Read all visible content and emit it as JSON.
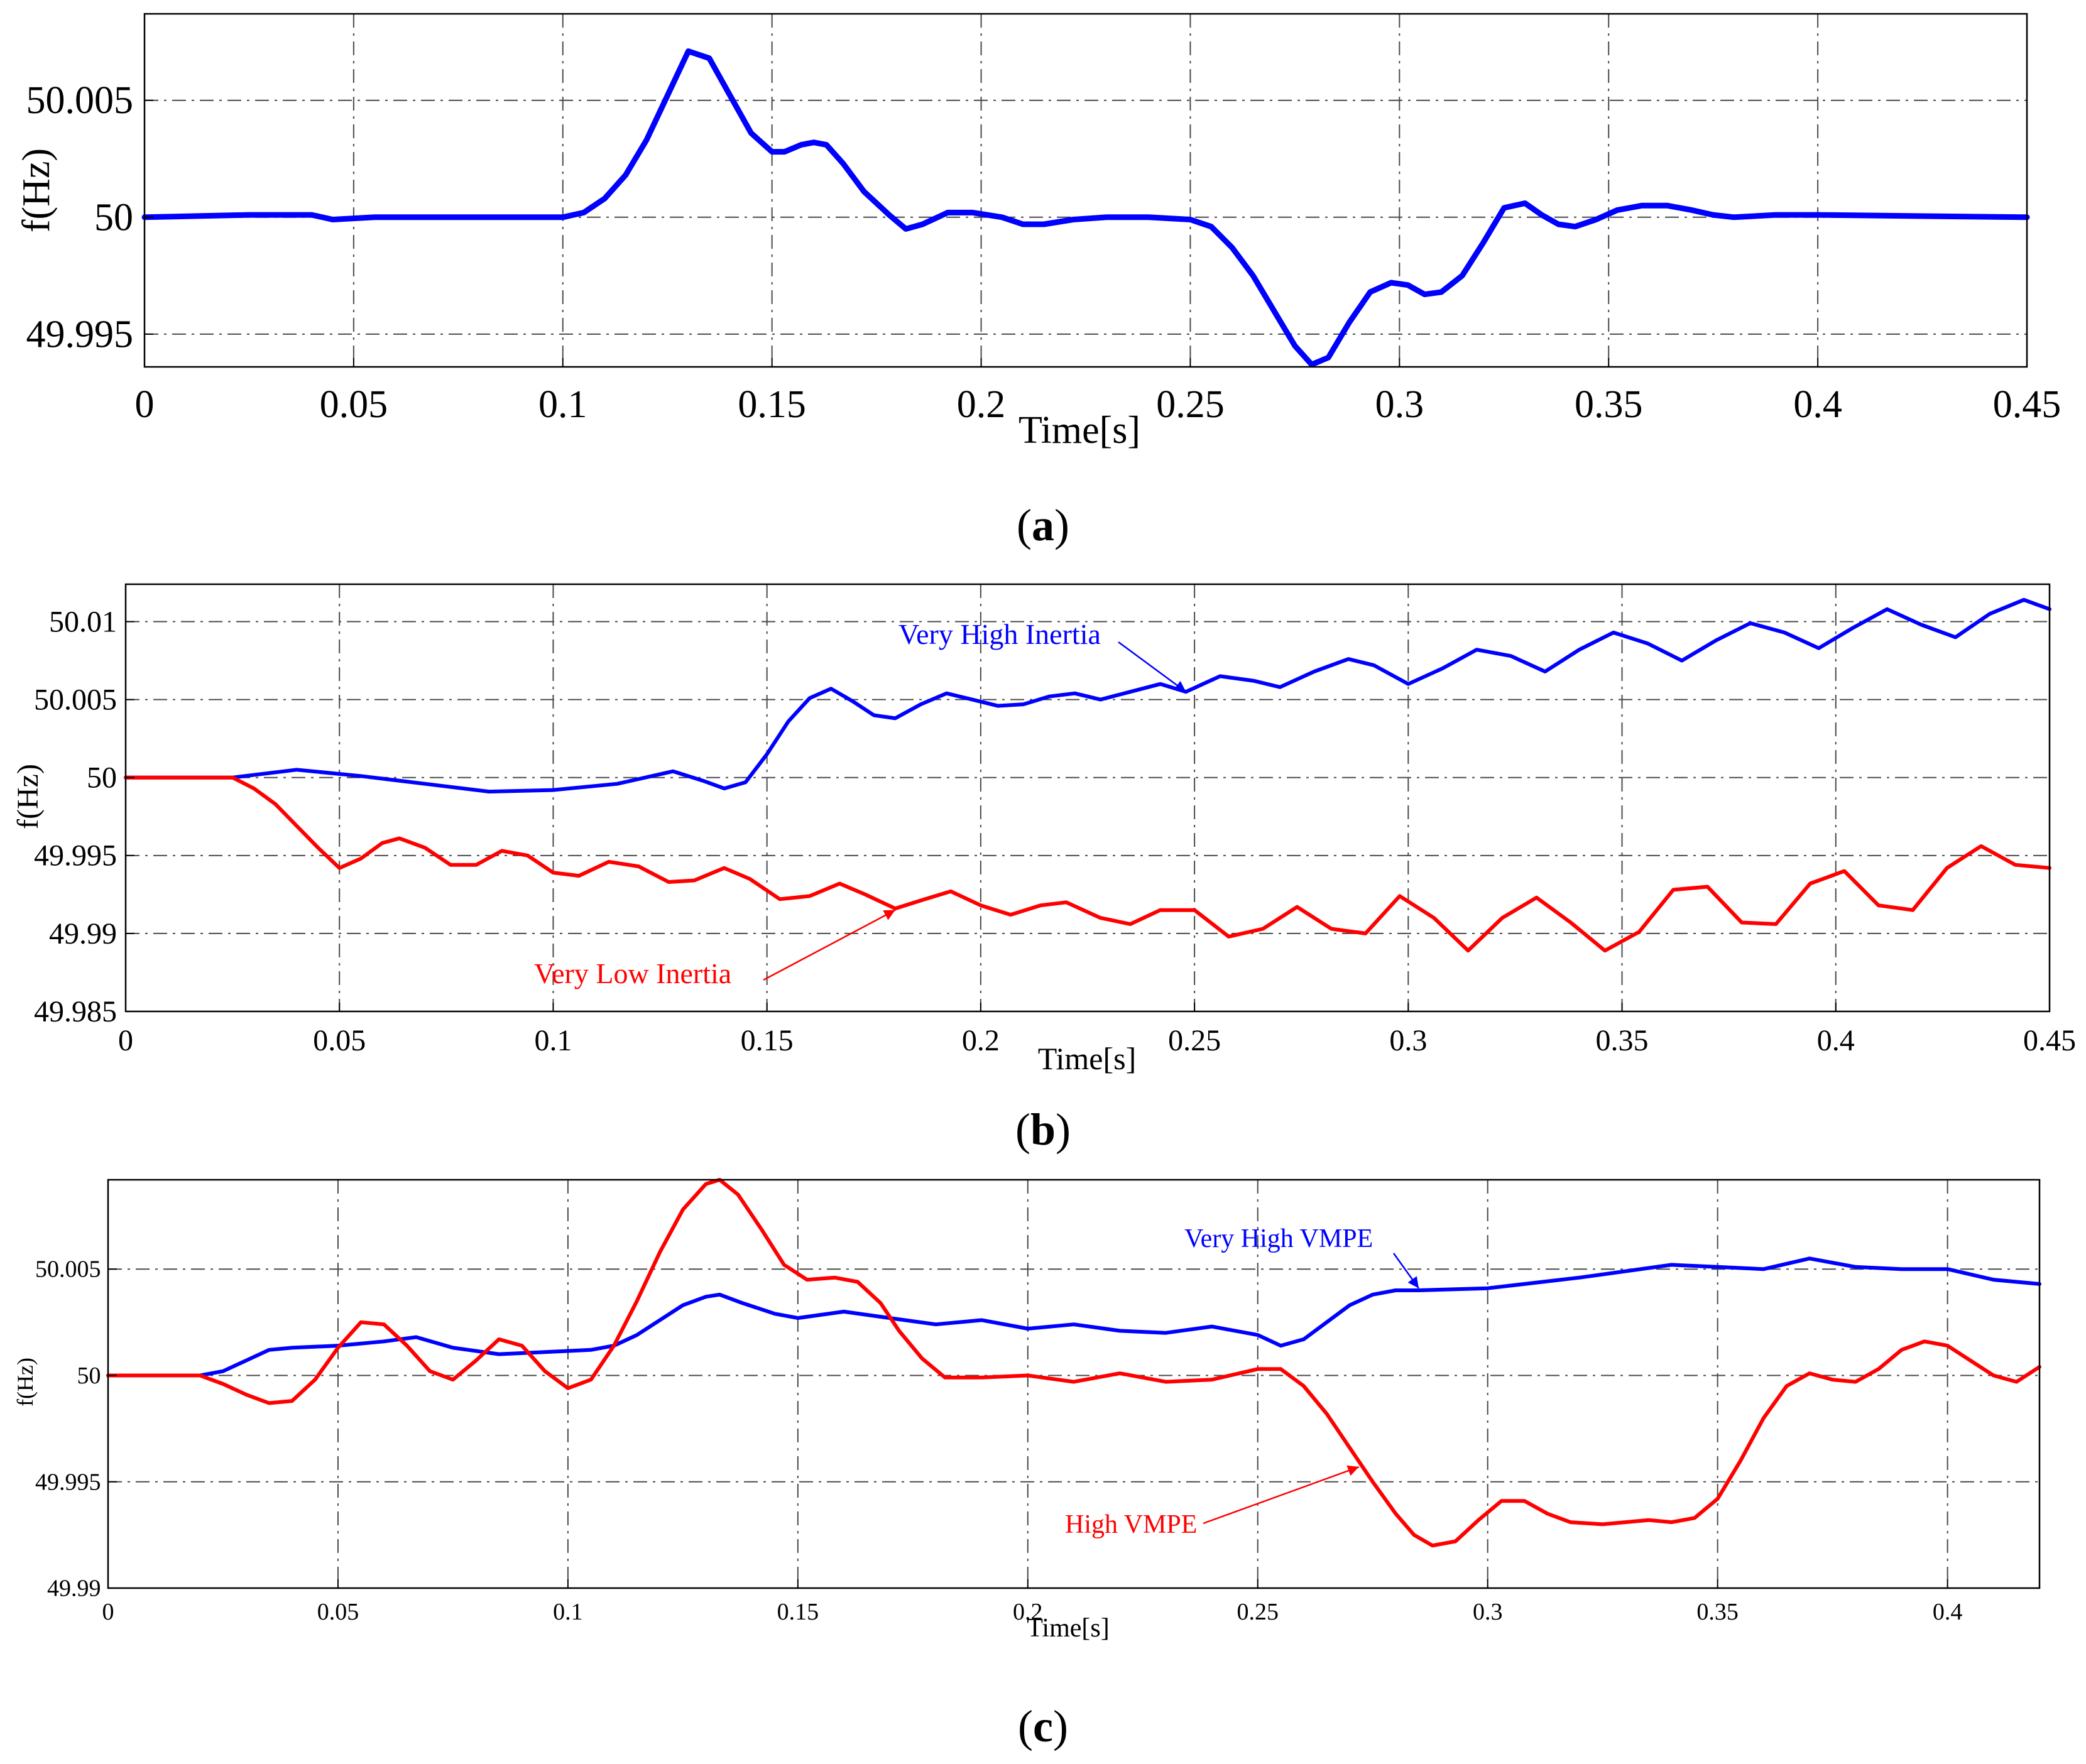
{
  "chart_data": [
    {
      "type": "line",
      "panel": "a",
      "panel_label": "a",
      "title": "",
      "xlabel": "Time[s]",
      "ylabel": "f(Hz)",
      "xlim": [
        0,
        0.45
      ],
      "ylim": [
        49.9936,
        50.0087
      ],
      "grid": true,
      "x_ticks": [
        "0",
        "0.05",
        "0.1",
        "0.15",
        "0.2",
        "0.25",
        "0.3",
        "0.35",
        "0.4",
        "0.45"
      ],
      "y_ticks": [
        "49.995",
        "50",
        "50.005"
      ],
      "series": [
        {
          "name": "f",
          "color": "#0000ff",
          "x": [
            0,
            0.025,
            0.04,
            0.045,
            0.055,
            0.1,
            0.105,
            0.11,
            0.115,
            0.12,
            0.125,
            0.13,
            0.135,
            0.14,
            0.145,
            0.15,
            0.153,
            0.157,
            0.16,
            0.163,
            0.167,
            0.172,
            0.178,
            0.182,
            0.186,
            0.192,
            0.198,
            0.205,
            0.21,
            0.215,
            0.222,
            0.23,
            0.24,
            0.25,
            0.255,
            0.26,
            0.265,
            0.27,
            0.275,
            0.279,
            0.283,
            0.288,
            0.293,
            0.298,
            0.302,
            0.306,
            0.31,
            0.315,
            0.32,
            0.325,
            0.33,
            0.334,
            0.338,
            0.342,
            0.347,
            0.352,
            0.358,
            0.364,
            0.37,
            0.375,
            0.38,
            0.39,
            0.4,
            0.45
          ],
          "y": [
            50,
            50.0001,
            50.0001,
            49.9999,
            50,
            50,
            50.0002,
            50.0008,
            50.0018,
            50.0033,
            50.0052,
            50.0071,
            50.0068,
            50.0052,
            50.0036,
            50.0028,
            50.0028,
            50.0031,
            50.0032,
            50.0031,
            50.0023,
            50.0011,
            50.0001,
            49.9995,
            49.9997,
            50.0002,
            50.0002,
            50.0,
            49.9997,
            49.9997,
            49.9999,
            50.0,
            50.0,
            49.9999,
            49.9996,
            49.9987,
            49.9975,
            49.996,
            49.9945,
            49.9937,
            49.994,
            49.9955,
            49.9968,
            49.9972,
            49.9971,
            49.9967,
            49.9968,
            49.9975,
            49.9989,
            50.0004,
            50.0006,
            50.0001,
            49.9997,
            49.9996,
            49.9999,
            50.0003,
            50.0005,
            50.0005,
            50.0003,
            50.0001,
            50.0,
            50.0001,
            50.0001,
            50.0
          ]
        }
      ]
    },
    {
      "type": "line",
      "panel": "b",
      "panel_label": "b",
      "title": "",
      "xlabel": "Time[s]",
      "ylabel": "f(Hz)",
      "xlim": [
        0,
        0.45
      ],
      "ylim": [
        49.985,
        50.0124
      ],
      "grid": true,
      "x_ticks": [
        "0",
        "0.05",
        "0.1",
        "0.15",
        "0.2",
        "0.25",
        "0.3",
        "0.35",
        "0.4",
        "0.45"
      ],
      "y_ticks": [
        "49.985",
        "49.99",
        "49.995",
        "50",
        "50.005",
        "50.01"
      ],
      "series": [
        {
          "name": "Very High Inertia",
          "color": "#0000ff",
          "x": [
            0,
            0.025,
            0.04,
            0.055,
            0.07,
            0.085,
            0.1,
            0.115,
            0.128,
            0.135,
            0.14,
            0.145,
            0.15,
            0.155,
            0.16,
            0.165,
            0.17,
            0.175,
            0.18,
            0.186,
            0.192,
            0.198,
            0.204,
            0.21,
            0.216,
            0.222,
            0.228,
            0.235,
            0.242,
            0.248,
            0.256,
            0.264,
            0.27,
            0.278,
            0.286,
            0.292,
            0.3,
            0.308,
            0.316,
            0.324,
            0.332,
            0.34,
            0.348,
            0.356,
            0.364,
            0.372,
            0.38,
            0.388,
            0.396,
            0.404,
            0.412,
            0.42,
            0.428,
            0.436,
            0.444,
            0.45
          ],
          "y": [
            50,
            50.0,
            50.0005,
            50.0001,
            49.9996,
            49.9991,
            49.9992,
            49.9996,
            50.0004,
            49.9998,
            49.9993,
            49.9997,
            50.0015,
            50.0036,
            50.0051,
            50.0057,
            50.0049,
            50.004,
            50.0038,
            50.0047,
            50.0054,
            50.005,
            50.0046,
            50.0047,
            50.0052,
            50.0054,
            50.005,
            50.0055,
            50.006,
            50.0055,
            50.0065,
            50.0062,
            50.0058,
            50.0068,
            50.0076,
            50.0072,
            50.006,
            50.007,
            50.0082,
            50.0078,
            50.0068,
            50.0082,
            50.0093,
            50.0086,
            50.0075,
            50.0088,
            50.0099,
            50.0093,
            50.0083,
            50.0096,
            50.0108,
            50.0098,
            50.009,
            50.0105,
            50.0114,
            50.0108
          ]
        },
        {
          "name": "Very Low Inertia",
          "color": "#ff0000",
          "x": [
            0,
            0.025,
            0.03,
            0.035,
            0.04,
            0.045,
            0.05,
            0.055,
            0.06,
            0.064,
            0.07,
            0.076,
            0.082,
            0.088,
            0.094,
            0.1,
            0.106,
            0.113,
            0.12,
            0.127,
            0.133,
            0.14,
            0.146,
            0.153,
            0.16,
            0.167,
            0.173,
            0.18,
            0.187,
            0.193,
            0.2,
            0.207,
            0.214,
            0.22,
            0.228,
            0.235,
            0.242,
            0.25,
            0.258,
            0.266,
            0.274,
            0.282,
            0.29,
            0.298,
            0.306,
            0.314,
            0.322,
            0.33,
            0.338,
            0.346,
            0.354,
            0.362,
            0.37,
            0.378,
            0.386,
            0.394,
            0.402,
            0.41,
            0.418,
            0.426,
            0.434,
            0.442,
            0.45
          ],
          "y": [
            50,
            50,
            49.9993,
            49.9983,
            49.9969,
            49.9955,
            49.9942,
            49.9948,
            49.9958,
            49.9961,
            49.9955,
            49.9944,
            49.9944,
            49.9953,
            49.995,
            49.9939,
            49.9937,
            49.9946,
            49.9943,
            49.9933,
            49.9934,
            49.9942,
            49.9935,
            49.9922,
            49.9924,
            49.9932,
            49.9925,
            49.9916,
            49.9922,
            49.9927,
            49.9918,
            49.9912,
            49.9918,
            49.992,
            49.991,
            49.9906,
            49.9915,
            49.9915,
            49.9898,
            49.9903,
            49.9917,
            49.9903,
            49.99,
            49.9924,
            49.991,
            49.9889,
            49.991,
            49.9923,
            49.9907,
            49.9889,
            49.9901,
            49.9928,
            49.993,
            49.9907,
            49.9906,
            49.9932,
            49.994,
            49.9918,
            49.9915,
            49.9942,
            49.9956,
            49.9944,
            49.9942
          ]
        }
      ],
      "annotations": [
        {
          "text": "Very High Inertia",
          "color": "#0000ff",
          "target_x": 0.248,
          "target_y": 50.0055
        },
        {
          "text": "Very Low Inertia",
          "color": "#ff0000",
          "target_x": 0.18,
          "target_y": 49.9915
        }
      ]
    },
    {
      "type": "line",
      "panel": "c",
      "panel_label": "c",
      "title": "",
      "xlabel": "Time[s]",
      "ylabel": "f(Hz)",
      "xlim": [
        0,
        0.42
      ],
      "ylim": [
        49.99,
        50.0092
      ],
      "grid": true,
      "x_ticks": [
        "0",
        "0.05",
        "0.1",
        "0.15",
        "0.2",
        "0.25",
        "0.3",
        "0.35",
        "0.4"
      ],
      "y_ticks": [
        "49.99",
        "49.995",
        "50",
        "50.005"
      ],
      "series": [
        {
          "name": "Very High VMPE",
          "color": "#0000ff",
          "x": [
            0,
            0.02,
            0.025,
            0.03,
            0.035,
            0.04,
            0.05,
            0.06,
            0.067,
            0.075,
            0.085,
            0.095,
            0.105,
            0.11,
            0.115,
            0.12,
            0.125,
            0.13,
            0.133,
            0.138,
            0.145,
            0.15,
            0.16,
            0.17,
            0.18,
            0.19,
            0.2,
            0.21,
            0.22,
            0.23,
            0.24,
            0.25,
            0.255,
            0.26,
            0.265,
            0.27,
            0.275,
            0.28,
            0.285,
            0.3,
            0.32,
            0.34,
            0.35,
            0.36,
            0.37,
            0.38,
            0.39,
            0.4,
            0.41,
            0.42
          ],
          "y": [
            50,
            50.0,
            50.0002,
            50.0007,
            50.0012,
            50.0013,
            50.0014,
            50.0016,
            50.0018,
            50.0013,
            50.001,
            50.0011,
            50.0012,
            50.0014,
            50.0019,
            50.0026,
            50.0033,
            50.0037,
            50.0038,
            50.0034,
            50.0029,
            50.0027,
            50.003,
            50.0027,
            50.0024,
            50.0026,
            50.0022,
            50.0024,
            50.0021,
            50.002,
            50.0023,
            50.0019,
            50.0014,
            50.0017,
            50.0025,
            50.0033,
            50.0038,
            50.004,
            50.004,
            50.0041,
            50.0046,
            50.0052,
            50.0051,
            50.005,
            50.0055,
            50.0051,
            50.005,
            50.005,
            50.0045,
            50.0043
          ]
        },
        {
          "name": "High VMPE",
          "color": "#ff0000",
          "x": [
            0,
            0.02,
            0.025,
            0.03,
            0.035,
            0.04,
            0.045,
            0.05,
            0.055,
            0.06,
            0.065,
            0.07,
            0.075,
            0.08,
            0.085,
            0.09,
            0.095,
            0.1,
            0.105,
            0.11,
            0.115,
            0.12,
            0.125,
            0.13,
            0.133,
            0.137,
            0.142,
            0.147,
            0.152,
            0.158,
            0.163,
            0.168,
            0.172,
            0.177,
            0.182,
            0.19,
            0.2,
            0.21,
            0.22,
            0.23,
            0.24,
            0.25,
            0.255,
            0.26,
            0.265,
            0.27,
            0.275,
            0.28,
            0.284,
            0.288,
            0.293,
            0.298,
            0.303,
            0.308,
            0.313,
            0.318,
            0.325,
            0.335,
            0.34,
            0.345,
            0.35,
            0.355,
            0.36,
            0.365,
            0.37,
            0.375,
            0.38,
            0.385,
            0.39,
            0.395,
            0.4,
            0.405,
            0.41,
            0.415,
            0.42
          ],
          "y": [
            50,
            50.0,
            49.9996,
            49.9991,
            49.9987,
            49.9988,
            49.9998,
            50.0013,
            50.0025,
            50.0024,
            50.0014,
            50.0002,
            49.9998,
            50.0007,
            50.0017,
            50.0014,
            50.0002,
            49.9994,
            49.9998,
            50.0014,
            50.0035,
            50.0058,
            50.0078,
            50.009,
            50.0092,
            50.0085,
            50.0069,
            50.0052,
            50.0045,
            50.0046,
            50.0044,
            50.0034,
            50.0021,
            50.0008,
            49.9999,
            49.9999,
            50.0,
            49.9997,
            50.0001,
            49.9997,
            49.9998,
            50.0003,
            50.0003,
            49.9995,
            49.9982,
            49.9966,
            49.995,
            49.9935,
            49.9925,
            49.992,
            49.9922,
            49.9932,
            49.9941,
            49.9941,
            49.9935,
            49.9931,
            49.993,
            49.9932,
            49.9931,
            49.9933,
            49.9942,
            49.996,
            49.998,
            49.9995,
            50.0001,
            49.9998,
            49.9997,
            50.0003,
            50.0012,
            50.0016,
            50.0014,
            50.0007,
            50.0,
            49.9997,
            50.0004
          ]
        }
      ],
      "annotations": [
        {
          "text": "Very High VMPE",
          "color": "#0000ff",
          "target_x": 0.285,
          "target_y": 50.0041
        },
        {
          "text": "High VMPE",
          "color": "#ff0000",
          "target_x": 0.272,
          "target_y": 49.9957
        }
      ]
    }
  ]
}
